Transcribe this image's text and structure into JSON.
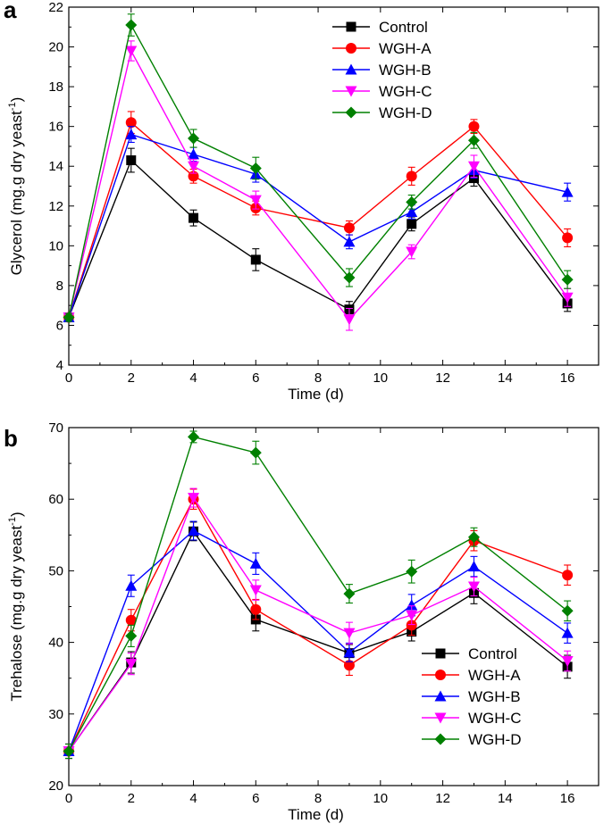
{
  "chart_data": [
    {
      "type": "line",
      "panel_label": "a",
      "xlabel": "Time (d)",
      "ylabel": "Glycerol (mg.g dry yeast",
      "ylabel_sup": "-1",
      "ylabel_close": ")",
      "xlim": [
        0,
        17
      ],
      "ylim": [
        4,
        22
      ],
      "x_ticks": [
        0,
        2,
        4,
        6,
        8,
        10,
        12,
        14,
        16
      ],
      "y_ticks": [
        4,
        6,
        8,
        10,
        12,
        14,
        16,
        18,
        20,
        22
      ],
      "x": [
        0,
        2,
        4,
        6,
        9,
        11,
        13,
        16
      ],
      "legend_position": "top-right",
      "series": [
        {
          "name": "Control",
          "color": "#000000",
          "marker": "square",
          "values": [
            6.4,
            14.3,
            11.4,
            9.3,
            6.8,
            11.1,
            13.4,
            7.1
          ],
          "errors": [
            0.2,
            0.6,
            0.4,
            0.55,
            0.4,
            0.35,
            0.4,
            0.4
          ]
        },
        {
          "name": "WGH-A",
          "color": "#ff0000",
          "marker": "circle",
          "values": [
            6.4,
            16.2,
            13.5,
            11.9,
            10.9,
            13.5,
            16.0,
            10.4
          ],
          "errors": [
            0.2,
            0.55,
            0.35,
            0.35,
            0.35,
            0.45,
            0.35,
            0.45
          ]
        },
        {
          "name": "WGH-B",
          "color": "#0000ff",
          "marker": "triangle-up",
          "values": [
            6.4,
            15.6,
            14.6,
            13.6,
            10.2,
            11.7,
            13.8,
            12.7
          ],
          "errors": [
            0.2,
            0.4,
            0.35,
            0.4,
            0.35,
            0.35,
            0.4,
            0.45
          ]
        },
        {
          "name": "WGH-C",
          "color": "#ff00ff",
          "marker": "triangle-down",
          "values": [
            6.4,
            19.8,
            14.0,
            12.3,
            6.3,
            9.7,
            14.0,
            7.4
          ],
          "errors": [
            0.2,
            0.5,
            0.35,
            0.45,
            0.55,
            0.35,
            0.55,
            0.45
          ]
        },
        {
          "name": "WGH-D",
          "color": "#008000",
          "marker": "diamond",
          "values": [
            6.4,
            21.1,
            15.4,
            13.9,
            8.4,
            12.2,
            15.3,
            8.3
          ],
          "errors": [
            0.2,
            0.55,
            0.45,
            0.55,
            0.45,
            0.35,
            0.4,
            0.45
          ]
        }
      ]
    },
    {
      "type": "line",
      "panel_label": "b",
      "xlabel": "Time (d)",
      "ylabel": "Trehalose (mg.g dry yeast",
      "ylabel_sup": "-1",
      "ylabel_close": ")",
      "xlim": [
        0,
        17
      ],
      "ylim": [
        20,
        70
      ],
      "x_ticks": [
        0,
        2,
        4,
        6,
        8,
        10,
        12,
        14,
        16
      ],
      "y_ticks": [
        20,
        30,
        40,
        50,
        60,
        70
      ],
      "x": [
        0,
        2,
        4,
        6,
        9,
        11,
        13,
        16
      ],
      "legend_position": "bottom-right",
      "series": [
        {
          "name": "Control",
          "color": "#000000",
          "marker": "square",
          "values": [
            24.8,
            37.2,
            55.5,
            43.2,
            38.5,
            41.5,
            46.9,
            36.6
          ],
          "errors": [
            1.0,
            1.5,
            1.3,
            1.6,
            1.2,
            1.3,
            1.5,
            1.6
          ]
        },
        {
          "name": "WGH-A",
          "color": "#ff0000",
          "marker": "circle",
          "values": [
            24.8,
            43.1,
            60.0,
            44.6,
            36.8,
            42.4,
            54.2,
            49.4
          ],
          "errors": [
            1.0,
            1.5,
            1.4,
            1.4,
            1.4,
            1.4,
            1.4,
            1.4
          ]
        },
        {
          "name": "WGH-B",
          "color": "#0000ff",
          "marker": "triangle-up",
          "values": [
            24.8,
            47.9,
            55.6,
            51.0,
            38.6,
            45.2,
            50.6,
            41.3
          ],
          "errors": [
            1.0,
            1.5,
            1.3,
            1.5,
            1.3,
            1.5,
            1.4,
            1.4
          ]
        },
        {
          "name": "WGH-C",
          "color": "#ff00ff",
          "marker": "triangle-down",
          "values": [
            24.8,
            37.0,
            60.2,
            47.3,
            41.3,
            43.8,
            47.8,
            37.4
          ],
          "errors": [
            1.0,
            1.5,
            1.3,
            1.4,
            1.5,
            1.3,
            1.3,
            1.4
          ]
        },
        {
          "name": "WGH-D",
          "color": "#008000",
          "marker": "diamond",
          "values": [
            24.8,
            40.9,
            68.7,
            66.5,
            46.8,
            49.9,
            54.7,
            44.4
          ],
          "errors": [
            1.0,
            1.5,
            0.8,
            1.6,
            1.3,
            1.6,
            1.3,
            1.4
          ]
        }
      ]
    }
  ]
}
